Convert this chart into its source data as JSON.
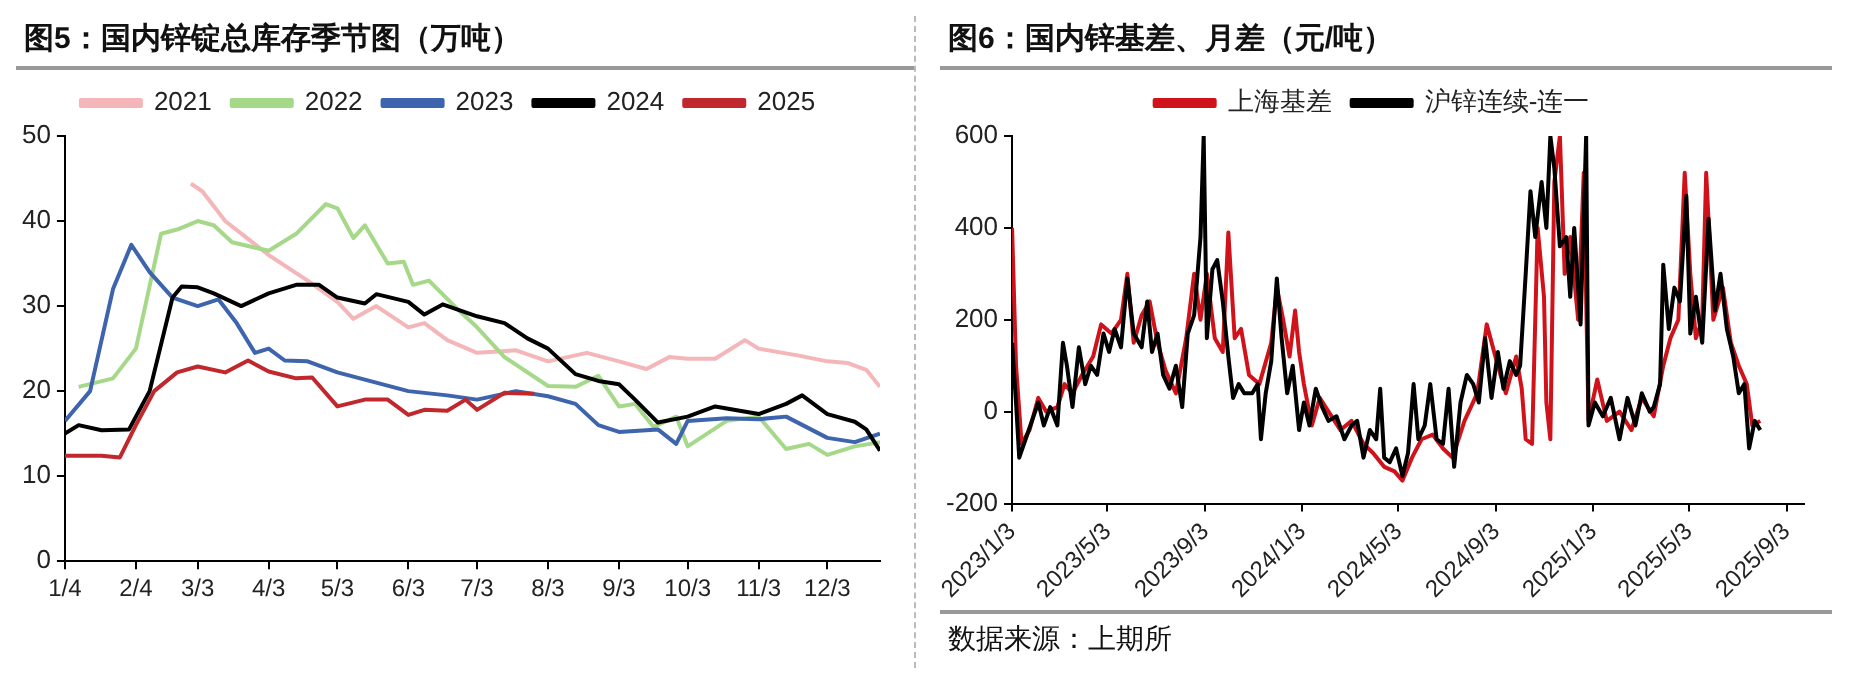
{
  "chart_data": [
    {
      "type": "line",
      "title": "图5：国内锌锭总库存季节图（万吨）",
      "legend": "top",
      "grid": false,
      "xlim": [
        "--01-04",
        "--12-26"
      ],
      "xticks": [
        {
          "value": "--01-04",
          "label": "1/4"
        },
        {
          "value": "--02-04",
          "label": "2/4"
        },
        {
          "value": "--03-03",
          "label": "3/3"
        },
        {
          "value": "--04-03",
          "label": "4/3"
        },
        {
          "value": "--05-03",
          "label": "5/3"
        },
        {
          "value": "--06-03",
          "label": "6/3"
        },
        {
          "value": "--07-03",
          "label": "7/3"
        },
        {
          "value": "--08-03",
          "label": "8/3"
        },
        {
          "value": "--09-03",
          "label": "9/3"
        },
        {
          "value": "--10-03",
          "label": "10/3"
        },
        {
          "value": "--11-03",
          "label": "11/3"
        },
        {
          "value": "--12-03",
          "label": "12/3"
        }
      ],
      "ylim": [
        0,
        50
      ],
      "yticks": [
        0,
        10,
        20,
        30,
        40,
        50
      ],
      "series": [
        {
          "name": "2021",
          "color": "#f4b6b8",
          "x": [
            "--02-28",
            "--03-05",
            "--03-15",
            "--04-03",
            "--04-20",
            "--05-03",
            "--05-10",
            "--05-20",
            "--06-03",
            "--06-10",
            "--06-20",
            "--07-03",
            "--07-20",
            "--08-03",
            "--08-20",
            "--09-03",
            "--09-15",
            "--09-25",
            "--10-03",
            "--10-15",
            "--10-28",
            "--11-03",
            "--11-20",
            "--12-03",
            "--12-12",
            "--12-20",
            "--12-26"
          ],
          "values": [
            44.4,
            43.5,
            40,
            36,
            33,
            30.5,
            28.5,
            30,
            27.5,
            28,
            26,
            24.5,
            24.8,
            23.5,
            24.5,
            23.5,
            22.6,
            24,
            23.8,
            23.8,
            26,
            25,
            24.2,
            23.5,
            23.3,
            22.5,
            20.5
          ]
        },
        {
          "name": "2022",
          "color": "#a6d88a",
          "x": [
            "--01-10",
            "--01-25",
            "--02-04",
            "--02-15",
            "--02-22",
            "--03-03",
            "--03-10",
            "--03-18",
            "--04-03",
            "--04-15",
            "--04-28",
            "--05-03",
            "--05-10",
            "--05-15",
            "--05-25",
            "--06-01",
            "--06-05",
            "--06-12",
            "--06-25",
            "--07-03",
            "--07-15",
            "--08-03",
            "--08-15",
            "--08-25",
            "--09-03",
            "--09-10",
            "--09-18",
            "--09-28",
            "--10-03",
            "--10-20",
            "--11-03",
            "--11-15",
            "--11-25",
            "--12-03",
            "--12-15",
            "--12-26"
          ],
          "values": [
            20.5,
            21.5,
            25,
            38.5,
            39,
            40,
            39.5,
            37.5,
            36.5,
            38.5,
            42,
            41.5,
            38,
            39.5,
            35,
            35.2,
            32.5,
            33,
            29.5,
            27.5,
            24,
            20.6,
            20.5,
            21.8,
            18.2,
            18.5,
            15.8,
            17,
            13.5,
            16.5,
            17,
            13.2,
            13.8,
            12.5,
            13.5,
            14
          ]
        },
        {
          "name": "2023",
          "color": "#3d64ad",
          "x": [
            "--01-04",
            "--01-15",
            "--01-25",
            "--02-02",
            "--02-10",
            "--02-20",
            "--03-03",
            "--03-12",
            "--03-20",
            "--03-28",
            "--04-03",
            "--04-10",
            "--04-20",
            "--05-03",
            "--06-03",
            "--06-20",
            "--07-03",
            "--07-20",
            "--08-03",
            "--08-15",
            "--08-25",
            "--09-03",
            "--09-20",
            "--09-28",
            "--10-03",
            "--10-20",
            "--11-03",
            "--11-15",
            "--12-03",
            "--12-15",
            "--12-26"
          ],
          "values": [
            16.5,
            20,
            32,
            37.2,
            34,
            31,
            30,
            30.8,
            28,
            24.5,
            25,
            23.6,
            23.5,
            22.2,
            20,
            19.5,
            19,
            20,
            19.4,
            18.5,
            16,
            15.2,
            15.5,
            13.8,
            16.5,
            16.8,
            16.7,
            17,
            14.5,
            14,
            15
          ]
        },
        {
          "name": "2024",
          "color": "#000000",
          "x": [
            "--01-04",
            "--01-10",
            "--01-20",
            "--02-01",
            "--02-10",
            "--02-20",
            "--02-24",
            "--03-03",
            "--03-10",
            "--03-22",
            "--04-03",
            "--04-15",
            "--04-25",
            "--05-03",
            "--05-15",
            "--05-20",
            "--06-03",
            "--06-10",
            "--06-18",
            "--07-03",
            "--07-15",
            "--07-25",
            "--08-03",
            "--08-15",
            "--08-25",
            "--09-03",
            "--09-10",
            "--09-20",
            "--10-03",
            "--10-15",
            "--11-03",
            "--11-15",
            "--11-22",
            "--12-03",
            "--12-15",
            "--12-20",
            "--12-26"
          ],
          "values": [
            15,
            16,
            15.4,
            15.5,
            20,
            31,
            32.3,
            32.2,
            31.5,
            30,
            31.5,
            32.5,
            32.5,
            31,
            30.3,
            31.4,
            30.5,
            29,
            30.2,
            28.8,
            28,
            26.2,
            25,
            22,
            21.2,
            20.8,
            19,
            16.3,
            17,
            18.2,
            17.3,
            18.5,
            19.5,
            17.3,
            16.4,
            15.5,
            13
          ]
        },
        {
          "name": "2025",
          "color": "#c0282d",
          "x": [
            "--01-04",
            "--01-20",
            "--01-28",
            "--02-04",
            "--02-12",
            "--02-22",
            "--03-03",
            "--03-15",
            "--03-25",
            "--04-03",
            "--04-15",
            "--04-22",
            "--05-03",
            "--05-15",
            "--05-25",
            "--06-03",
            "--06-10",
            "--06-20",
            "--06-28",
            "--07-03",
            "--07-15",
            "--07-28"
          ],
          "values": [
            12.4,
            12.4,
            12.2,
            16,
            20,
            22.2,
            22.9,
            22.2,
            23.6,
            22.3,
            21.5,
            21.6,
            18.2,
            19,
            19,
            17.2,
            17.8,
            17.7,
            19,
            17.8,
            19.8,
            19.7
          ]
        }
      ]
    },
    {
      "type": "line",
      "title": "图6：国内锌基差、月差（元/吨）",
      "legend": "top",
      "grid": false,
      "annotations": [
        "数据来源：上期所"
      ],
      "xlim": [
        "2023-01-03",
        "2025-09-25"
      ],
      "xticks": [
        {
          "value": "2023-01-03",
          "label": "2023/1/3"
        },
        {
          "value": "2023-05-03",
          "label": "2023/5/3"
        },
        {
          "value": "2023-09-03",
          "label": "2023/9/3"
        },
        {
          "value": "2024-01-03",
          "label": "2024/1/3"
        },
        {
          "value": "2024-05-03",
          "label": "2024/5/3"
        },
        {
          "value": "2024-09-03",
          "label": "2024/9/3"
        },
        {
          "value": "2025-01-03",
          "label": "2025/1/3"
        },
        {
          "value": "2025-05-03",
          "label": "2025/5/3"
        },
        {
          "value": "2025-09-03",
          "label": "2025/9/3"
        }
      ],
      "ylim": [
        -200,
        600
      ],
      "yticks": [
        -200,
        0,
        200,
        400,
        600
      ],
      "series": [
        {
          "name": "上海基差",
          "color": "#d0121b",
          "x": [
            "2023-01-03",
            "2023-01-08",
            "2023-01-15",
            "2023-01-25",
            "2023-02-05",
            "2023-02-15",
            "2023-03-01",
            "2023-03-10",
            "2023-03-20",
            "2023-04-01",
            "2023-04-15",
            "2023-04-25",
            "2023-05-08",
            "2023-05-20",
            "2023-05-28",
            "2023-06-05",
            "2023-06-15",
            "2023-06-25",
            "2023-07-05",
            "2023-07-15",
            "2023-07-28",
            "2023-08-10",
            "2023-08-20",
            "2023-08-28",
            "2023-09-05",
            "2023-09-15",
            "2023-09-25",
            "2023-10-02",
            "2023-10-10",
            "2023-10-18",
            "2023-10-28",
            "2023-11-10",
            "2023-11-25",
            "2023-12-02",
            "2023-12-10",
            "2023-12-18",
            "2023-12-25",
            "2023-12-30",
            "2024-01-05",
            "2024-01-15",
            "2024-01-25",
            "2024-02-05",
            "2024-02-20",
            "2024-03-05",
            "2024-03-20",
            "2024-04-01",
            "2024-04-15",
            "2024-04-28",
            "2024-05-08",
            "2024-05-20",
            "2024-06-01",
            "2024-06-15",
            "2024-06-28",
            "2024-07-10",
            "2024-07-25",
            "2024-08-10",
            "2024-08-22",
            "2024-09-05",
            "2024-09-15",
            "2024-09-28",
            "2024-10-05",
            "2024-10-10",
            "2024-10-18",
            "2024-10-25",
            "2024-11-02",
            "2024-11-05",
            "2024-11-10",
            "2024-11-15",
            "2024-11-22",
            "2024-11-28",
            "2024-12-05",
            "2024-12-15",
            "2024-12-22",
            "2024-12-28",
            "2025-01-08",
            "2025-01-20",
            "2025-02-05",
            "2025-02-20",
            "2025-03-05",
            "2025-03-20",
            "2025-04-01",
            "2025-04-10",
            "2025-04-20",
            "2025-04-28",
            "2025-05-05",
            "2025-05-12",
            "2025-05-20",
            "2025-05-25",
            "2025-06-03",
            "2025-06-15",
            "2025-06-25",
            "2025-07-05",
            "2025-07-15",
            "2025-07-22",
            "2025-08-01"
          ],
          "values": [
            400,
            100,
            -70,
            -40,
            30,
            0,
            10,
            60,
            40,
            80,
            120,
            190,
            170,
            200,
            300,
            150,
            210,
            240,
            150,
            90,
            40,
            160,
            300,
            200,
            300,
            160,
            130,
            390,
            160,
            180,
            80,
            60,
            150,
            270,
            200,
            120,
            220,
            130,
            60,
            -30,
            30,
            0,
            -40,
            -20,
            -70,
            -90,
            -120,
            -130,
            -150,
            -100,
            -60,
            -50,
            -80,
            -100,
            -20,
            40,
            190,
            100,
            40,
            120,
            50,
            -60,
            -70,
            400,
            250,
            20,
            -60,
            500,
            600,
            300,
            380,
            200,
            520,
            -20,
            70,
            -20,
            0,
            -40,
            30,
            -10,
            100,
            160,
            200,
            520,
            300,
            160,
            200,
            520,
            200,
            270,
            150,
            100,
            60,
            -30,
            -20
          ]
        },
        {
          "name": "沪锌连续-连一",
          "color": "#000000",
          "x": [
            "2023-01-03",
            "2023-01-08",
            "2023-01-12",
            "2023-01-20",
            "2023-01-28",
            "2023-02-05",
            "2023-02-12",
            "2023-02-20",
            "2023-03-01",
            "2023-03-08",
            "2023-03-13",
            "2023-03-20",
            "2023-03-28",
            "2023-04-05",
            "2023-04-12",
            "2023-04-20",
            "2023-04-28",
            "2023-05-05",
            "2023-05-12",
            "2023-05-20",
            "2023-05-28",
            "2023-06-05",
            "2023-06-15",
            "2023-06-22",
            "2023-06-28",
            "2023-07-05",
            "2023-07-12",
            "2023-07-20",
            "2023-07-28",
            "2023-08-05",
            "2023-08-12",
            "2023-08-20",
            "2023-08-28",
            "2023-09-01",
            "2023-09-05",
            "2023-09-12",
            "2023-09-18",
            "2023-09-25",
            "2023-10-02",
            "2023-10-08",
            "2023-10-15",
            "2023-10-22",
            "2023-11-01",
            "2023-11-08",
            "2023-11-12",
            "2023-11-18",
            "2023-11-25",
            "2023-12-02",
            "2023-12-08",
            "2023-12-15",
            "2023-12-22",
            "2023-12-30",
            "2024-01-05",
            "2024-01-12",
            "2024-01-20",
            "2024-01-28",
            "2024-02-05",
            "2024-02-15",
            "2024-02-25",
            "2024-03-05",
            "2024-03-12",
            "2024-03-20",
            "2024-03-28",
            "2024-04-05",
            "2024-04-10",
            "2024-04-15",
            "2024-04-22",
            "2024-04-30",
            "2024-05-08",
            "2024-05-15",
            "2024-05-22",
            "2024-05-28",
            "2024-06-05",
            "2024-06-12",
            "2024-06-20",
            "2024-06-28",
            "2024-07-05",
            "2024-07-12",
            "2024-07-20",
            "2024-07-28",
            "2024-08-05",
            "2024-08-12",
            "2024-08-20",
            "2024-08-28",
            "2024-09-05",
            "2024-09-12",
            "2024-09-20",
            "2024-09-28",
            "2024-10-03",
            "2024-10-10",
            "2024-10-16",
            "2024-10-22",
            "2024-10-30",
            "2024-11-05",
            "2024-11-10",
            "2024-11-15",
            "2024-11-22",
            "2024-11-30",
            "2024-12-05",
            "2024-12-10",
            "2024-12-18",
            "2024-12-25",
            "2024-12-28",
            "2025-01-05",
            "2025-01-15",
            "2025-01-25",
            "2025-02-05",
            "2025-02-15",
            "2025-02-25",
            "2025-03-05",
            "2025-03-15",
            "2025-03-20",
            "2025-03-28",
            "2025-04-01",
            "2025-04-08",
            "2025-04-15",
            "2025-04-22",
            "2025-04-30",
            "2025-05-05",
            "2025-05-12",
            "2025-05-20",
            "2025-05-28",
            "2025-06-05",
            "2025-06-12",
            "2025-06-20",
            "2025-06-28",
            "2025-07-05",
            "2025-07-12",
            "2025-07-18",
            "2025-07-25",
            "2025-08-01"
          ],
          "values": [
            150,
            20,
            -100,
            -60,
            -20,
            20,
            -30,
            10,
            -30,
            150,
            100,
            10,
            140,
            60,
            100,
            80,
            170,
            130,
            180,
            140,
            290,
            170,
            140,
            240,
            130,
            170,
            80,
            50,
            100,
            10,
            170,
            210,
            380,
            600,
            160,
            310,
            330,
            240,
            120,
            30,
            60,
            40,
            40,
            60,
            -60,
            40,
            110,
            290,
            160,
            40,
            100,
            -40,
            20,
            -30,
            50,
            10,
            -20,
            -10,
            -60,
            -30,
            -20,
            -100,
            -40,
            -60,
            50,
            -100,
            -110,
            -80,
            -140,
            -90,
            60,
            -60,
            -30,
            60,
            -60,
            -70,
            50,
            -120,
            20,
            80,
            60,
            20,
            160,
            30,
            130,
            50,
            110,
            80,
            100,
            300,
            480,
            380,
            500,
            400,
            600,
            530,
            360,
            380,
            250,
            400,
            190,
            600,
            -30,
            20,
            -10,
            30,
            -60,
            30,
            -30,
            40,
            0,
            10,
            60,
            320,
            180,
            270,
            240,
            470,
            170,
            250,
            150,
            420,
            220,
            300,
            180,
            120,
            40,
            60,
            -80,
            -20,
            -40
          ]
        }
      ]
    }
  ]
}
